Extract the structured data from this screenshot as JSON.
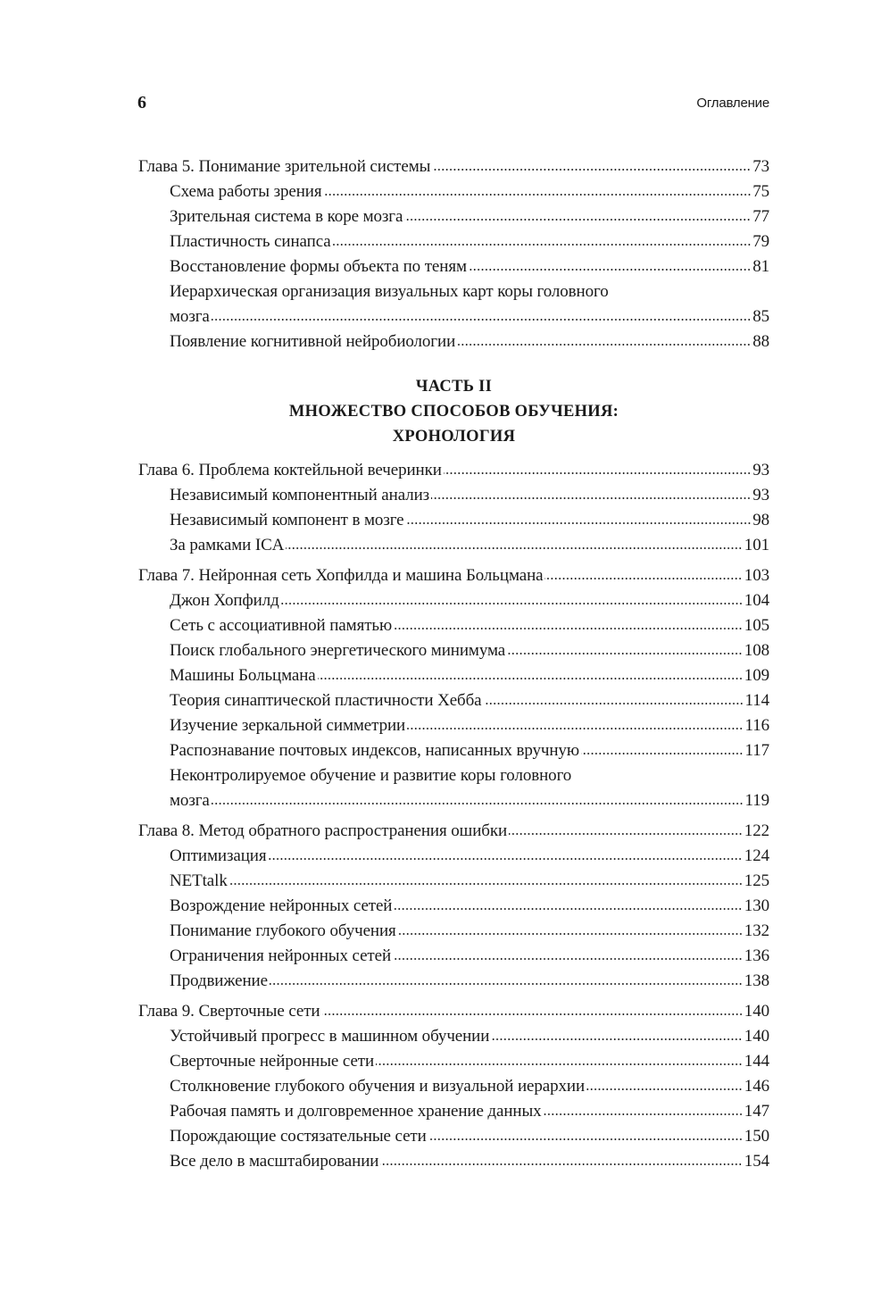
{
  "header": {
    "page_number": "6",
    "running_head": "Оглавление"
  },
  "toc": [
    {
      "type": "chapter",
      "title": "Глава 5. Понимание зрительной системы",
      "page": "73",
      "sections": [
        {
          "title": "Схема работы зрения",
          "page": "75"
        },
        {
          "title": "Зрительная система в коре мозга",
          "page": "77"
        },
        {
          "title": "Пластичность синапса",
          "page": "79"
        },
        {
          "title": "Восстановление формы объекта по теням",
          "page": "81"
        },
        {
          "title_lines": [
            "Иерархическая организация визуальных карт коры головного",
            "мозга"
          ],
          "page": "85"
        },
        {
          "title": "Появление когнитивной нейробиологии",
          "page": "88"
        }
      ]
    },
    {
      "type": "part",
      "lines": [
        "ЧАСТЬ II",
        "МНОЖЕСТВО СПОСОБОВ ОБУЧЕНИЯ:",
        "ХРОНОЛОГИЯ"
      ]
    },
    {
      "type": "chapter",
      "title": "Глава 6. Проблема коктейльной вечеринки",
      "page": "93",
      "sections": [
        {
          "title": "Независимый компонентный анализ",
          "page": "93"
        },
        {
          "title": "Независимый компонент в мозге",
          "page": "98"
        },
        {
          "title": "За рамками ICA",
          "page": "101"
        }
      ]
    },
    {
      "type": "chapter",
      "title": "Глава 7. Нейронная сеть Хопфилда и машина Больцмана",
      "page": "103",
      "sections": [
        {
          "title": "Джон Хопфилд",
          "page": "104"
        },
        {
          "title": "Сеть с ассоциативной памятью",
          "page": "105"
        },
        {
          "title": "Поиск глобального энергетического минимума",
          "page": "108"
        },
        {
          "title": "Машины Больцмана",
          "page": "109"
        },
        {
          "title": "Теория синаптической пластичности Хебба",
          "page": "114"
        },
        {
          "title": "Изучение зеркальной симметрии",
          "page": "116"
        },
        {
          "title": "Распознавание почтовых индексов, написанных вручную",
          "page": "117"
        },
        {
          "title_lines": [
            "Неконтролируемое обучение и развитие коры головного",
            "мозга"
          ],
          "page": "119"
        }
      ]
    },
    {
      "type": "chapter",
      "title": "Глава 8. Метод обратного распространения ошибки",
      "page": "122",
      "sections": [
        {
          "title": "Оптимизация",
          "page": "124"
        },
        {
          "title": "NETtalk",
          "page": "125"
        },
        {
          "title": "Возрождение нейронных сетей",
          "page": "130"
        },
        {
          "title": "Понимание глубокого обучения",
          "page": "132"
        },
        {
          "title": "Ограничения нейронных сетей",
          "page": "136"
        },
        {
          "title": "Продвижение",
          "page": "138"
        }
      ]
    },
    {
      "type": "chapter",
      "title": "Глава 9. Сверточные сети",
      "page": "140",
      "sections": [
        {
          "title": "Устойчивый прогресс в машинном обучении",
          "page": "140"
        },
        {
          "title": "Сверточные нейронные сети",
          "page": "144"
        },
        {
          "title": "Столкновение глубокого обучения и визуальной иерархии",
          "page": "146"
        },
        {
          "title": "Рабочая память и долговременное хранение данных",
          "page": "147"
        },
        {
          "title": "Порождающие состязательные сети",
          "page": "150"
        },
        {
          "title": "Все дело в масштабировании",
          "page": "154"
        }
      ]
    }
  ]
}
